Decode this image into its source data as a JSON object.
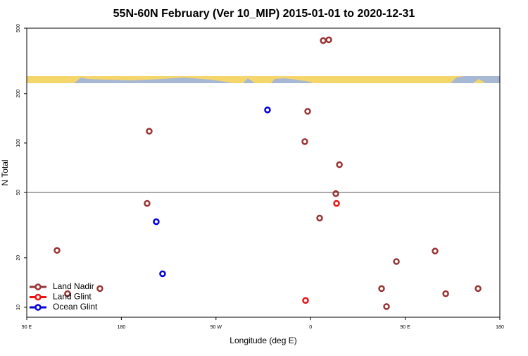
{
  "chart_data": {
    "type": "scatter",
    "title": "55N-60N February (Ver 10_MIP)   2015-01-01 to 2020-12-31",
    "x_label": "Longitude (deg E)",
    "y_label": "N Total",
    "log_y": true,
    "xlim": [
      90,
      540
    ],
    "ylim": [
      8.7,
      500
    ],
    "xticks": [
      {
        "value": 90,
        "label": "90 E"
      },
      {
        "value": 180,
        "label": "180"
      },
      {
        "value": 270,
        "label": "90 W"
      },
      {
        "value": 360,
        "label": "0"
      },
      {
        "value": 450,
        "label": "90 E"
      },
      {
        "value": 540,
        "label": "180"
      }
    ],
    "yticks": [
      10,
      20,
      50,
      100,
      200,
      500
    ],
    "hline": 50,
    "legend": "lower left",
    "series": [
      {
        "name": "Land Nadir",
        "color": "#993333",
        "x": [
          118.8,
          128.8,
          159.6,
          206.5,
          204.5,
          354.5,
          357.2,
          372,
          377.3,
          387.4,
          384,
          368.6,
          427.5,
          432.2,
          441.6,
          478.4,
          488.5,
          519.3
        ],
        "values": [
          22.2,
          12.1,
          13.0,
          118,
          42.9,
          102,
          156,
          420,
          425,
          73.8,
          49.2,
          34.9,
          13.0,
          10.1,
          19.0,
          22.0,
          12.1,
          13.0
        ]
      },
      {
        "name": "Land Glint",
        "color": "#ee1111",
        "x": [
          384.7,
          355.2
        ],
        "values": [
          42.9,
          11.0
        ]
      },
      {
        "name": "Ocean Glint",
        "color": "#0000dd",
        "x": [
          319,
          213.2,
          219.2
        ],
        "values": [
          159,
          33.2,
          16.0
        ]
      }
    ]
  }
}
